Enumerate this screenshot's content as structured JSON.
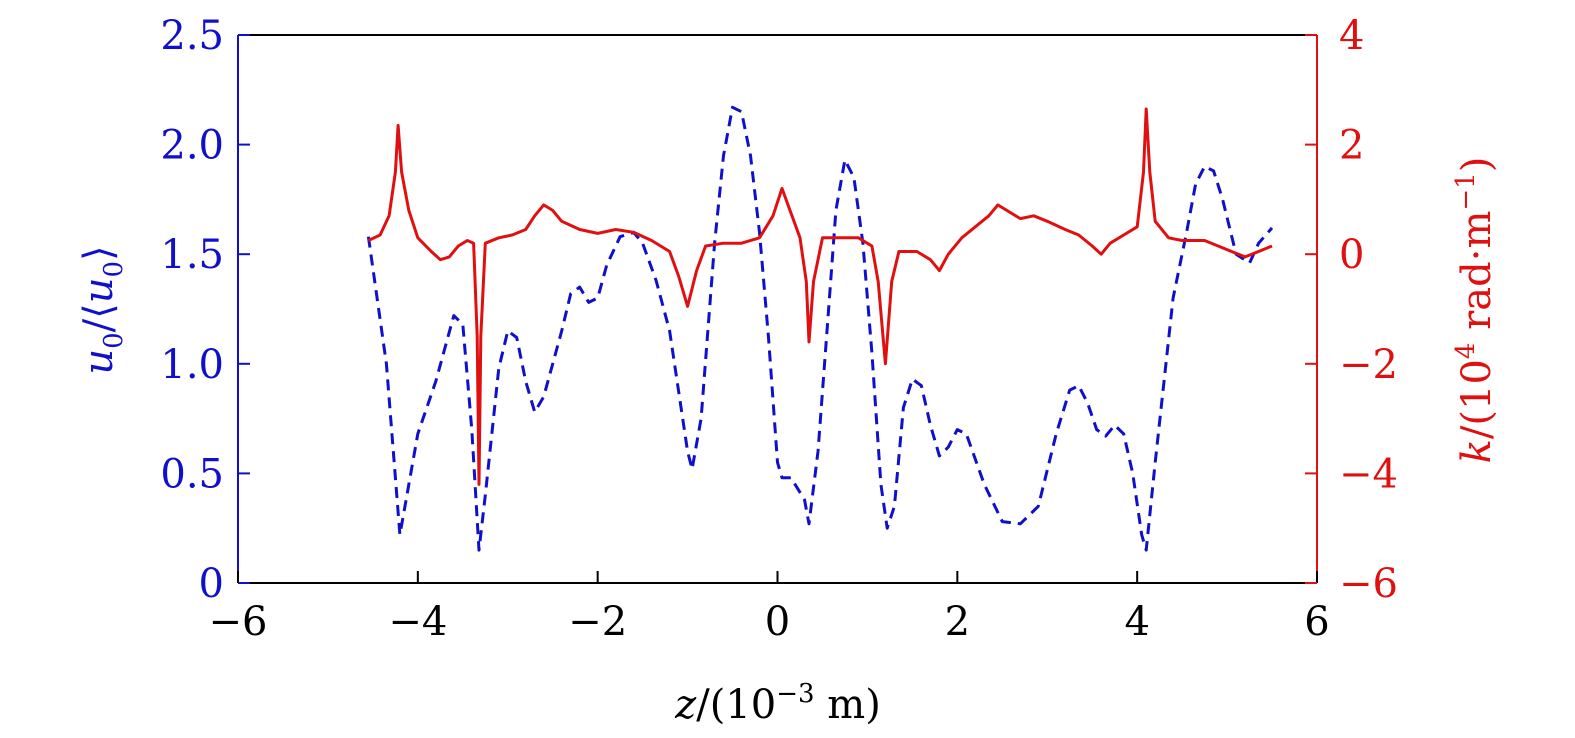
{
  "chart_data": {
    "type": "line",
    "x_range": [
      -6,
      6
    ],
    "x_ticks": [
      -6,
      -4,
      -2,
      0,
      2,
      4,
      6
    ],
    "x_tick_labels": [
      "−6",
      "−4",
      "−2",
      "0",
      "2",
      "4",
      "6"
    ],
    "x_label": {
      "var": "z",
      "text_a": "/(10",
      "sup": "−3",
      "text_b": " m)"
    },
    "left_axis": {
      "range": [
        0,
        2.5
      ],
      "ticks": [
        0,
        0.5,
        1.0,
        1.5,
        2.0,
        2.5
      ],
      "tick_labels": [
        "0",
        "0.5",
        "1.0",
        "1.5",
        "2.0",
        "2.5"
      ],
      "label": {
        "var": "u",
        "sub": "0",
        "mid": "/⟨",
        "var2": "u",
        "sub2": "0",
        "end": "⟩"
      },
      "color": "#1010cc"
    },
    "right_axis": {
      "range": [
        -6,
        4
      ],
      "ticks": [
        -6,
        -4,
        -2,
        0,
        2,
        4
      ],
      "tick_labels": [
        "−6",
        "−4",
        "−2",
        "0",
        "2",
        "4"
      ],
      "label": {
        "var": "k",
        "text_a": "/(10",
        "sup": "4",
        "text_b": " rad·m",
        "sup2": "−1",
        "text_c": ")"
      },
      "color": "#e01010"
    },
    "grid": false,
    "series": [
      {
        "axis": "left",
        "style": "dashed",
        "color": "#1010cc",
        "points": [
          [
            -4.55,
            1.58
          ],
          [
            -4.35,
            1.0
          ],
          [
            -4.2,
            0.22
          ],
          [
            -4.0,
            0.68
          ],
          [
            -3.8,
            0.92
          ],
          [
            -3.6,
            1.22
          ],
          [
            -3.5,
            1.18
          ],
          [
            -3.4,
            0.7
          ],
          [
            -3.32,
            0.15
          ],
          [
            -3.25,
            0.4
          ],
          [
            -3.1,
            0.98
          ],
          [
            -3.0,
            1.15
          ],
          [
            -2.9,
            1.12
          ],
          [
            -2.8,
            0.92
          ],
          [
            -2.7,
            0.78
          ],
          [
            -2.6,
            0.85
          ],
          [
            -2.4,
            1.15
          ],
          [
            -2.3,
            1.32
          ],
          [
            -2.2,
            1.35
          ],
          [
            -2.1,
            1.28
          ],
          [
            -2.0,
            1.3
          ],
          [
            -1.9,
            1.45
          ],
          [
            -1.75,
            1.58
          ],
          [
            -1.6,
            1.6
          ],
          [
            -1.5,
            1.55
          ],
          [
            -1.35,
            1.38
          ],
          [
            -1.2,
            1.15
          ],
          [
            -1.0,
            0.6
          ],
          [
            -0.95,
            0.52
          ],
          [
            -0.85,
            0.75
          ],
          [
            -0.7,
            1.55
          ],
          [
            -0.6,
            1.95
          ],
          [
            -0.5,
            2.17
          ],
          [
            -0.4,
            2.15
          ],
          [
            -0.3,
            1.95
          ],
          [
            -0.2,
            1.6
          ],
          [
            -0.1,
            1.12
          ],
          [
            0.0,
            0.55
          ],
          [
            0.05,
            0.48
          ],
          [
            0.15,
            0.48
          ],
          [
            0.3,
            0.38
          ],
          [
            0.35,
            0.27
          ],
          [
            0.45,
            0.6
          ],
          [
            0.55,
            1.15
          ],
          [
            0.65,
            1.7
          ],
          [
            0.75,
            1.93
          ],
          [
            0.85,
            1.85
          ],
          [
            0.95,
            1.55
          ],
          [
            1.05,
            1.05
          ],
          [
            1.15,
            0.45
          ],
          [
            1.22,
            0.25
          ],
          [
            1.3,
            0.35
          ],
          [
            1.4,
            0.8
          ],
          [
            1.5,
            0.93
          ],
          [
            1.6,
            0.9
          ],
          [
            1.7,
            0.72
          ],
          [
            1.8,
            0.58
          ],
          [
            1.9,
            0.62
          ],
          [
            2.0,
            0.7
          ],
          [
            2.1,
            0.68
          ],
          [
            2.3,
            0.45
          ],
          [
            2.5,
            0.28
          ],
          [
            2.7,
            0.27
          ],
          [
            2.9,
            0.35
          ],
          [
            3.1,
            0.68
          ],
          [
            3.25,
            0.88
          ],
          [
            3.35,
            0.9
          ],
          [
            3.45,
            0.82
          ],
          [
            3.55,
            0.7
          ],
          [
            3.65,
            0.67
          ],
          [
            3.75,
            0.72
          ],
          [
            3.85,
            0.68
          ],
          [
            3.95,
            0.5
          ],
          [
            4.05,
            0.22
          ],
          [
            4.1,
            0.15
          ],
          [
            4.2,
            0.55
          ],
          [
            4.4,
            1.3
          ],
          [
            4.55,
            1.6
          ],
          [
            4.65,
            1.82
          ],
          [
            4.75,
            1.9
          ],
          [
            4.85,
            1.88
          ],
          [
            4.95,
            1.75
          ],
          [
            5.1,
            1.5
          ],
          [
            5.25,
            1.46
          ],
          [
            5.35,
            1.55
          ],
          [
            5.5,
            1.62
          ]
        ]
      },
      {
        "axis": "right",
        "style": "solid",
        "color": "#e01010",
        "points": [
          [
            -4.55,
            0.25
          ],
          [
            -4.42,
            0.35
          ],
          [
            -4.32,
            0.7
          ],
          [
            -4.25,
            1.5
          ],
          [
            -4.22,
            2.35
          ],
          [
            -4.18,
            1.5
          ],
          [
            -4.1,
            0.8
          ],
          [
            -4.0,
            0.3
          ],
          [
            -3.85,
            0.05
          ],
          [
            -3.75,
            -0.1
          ],
          [
            -3.65,
            -0.05
          ],
          [
            -3.55,
            0.15
          ],
          [
            -3.45,
            0.25
          ],
          [
            -3.38,
            0.2
          ],
          [
            -3.34,
            -1.5
          ],
          [
            -3.32,
            -4.2
          ],
          [
            -3.3,
            -1.5
          ],
          [
            -3.25,
            0.2
          ],
          [
            -3.1,
            0.3
          ],
          [
            -2.95,
            0.35
          ],
          [
            -2.8,
            0.45
          ],
          [
            -2.7,
            0.7
          ],
          [
            -2.6,
            0.9
          ],
          [
            -2.5,
            0.8
          ],
          [
            -2.4,
            0.6
          ],
          [
            -2.2,
            0.45
          ],
          [
            -2.0,
            0.38
          ],
          [
            -1.8,
            0.45
          ],
          [
            -1.6,
            0.4
          ],
          [
            -1.4,
            0.25
          ],
          [
            -1.2,
            0.05
          ],
          [
            -1.1,
            -0.4
          ],
          [
            -1.0,
            -0.95
          ],
          [
            -0.9,
            -0.3
          ],
          [
            -0.8,
            0.15
          ],
          [
            -0.6,
            0.2
          ],
          [
            -0.4,
            0.2
          ],
          [
            -0.2,
            0.3
          ],
          [
            -0.05,
            0.7
          ],
          [
            0.05,
            1.2
          ],
          [
            0.15,
            0.75
          ],
          [
            0.25,
            0.3
          ],
          [
            0.32,
            -0.5
          ],
          [
            0.35,
            -1.6
          ],
          [
            0.4,
            -0.5
          ],
          [
            0.5,
            0.3
          ],
          [
            0.7,
            0.3
          ],
          [
            0.9,
            0.3
          ],
          [
            1.05,
            0.15
          ],
          [
            1.12,
            -0.5
          ],
          [
            1.2,
            -2.0
          ],
          [
            1.27,
            -0.5
          ],
          [
            1.35,
            0.05
          ],
          [
            1.55,
            0.05
          ],
          [
            1.7,
            -0.1
          ],
          [
            1.8,
            -0.3
          ],
          [
            1.9,
            0.0
          ],
          [
            2.05,
            0.3
          ],
          [
            2.2,
            0.5
          ],
          [
            2.35,
            0.7
          ],
          [
            2.45,
            0.9
          ],
          [
            2.55,
            0.8
          ],
          [
            2.7,
            0.65
          ],
          [
            2.85,
            0.7
          ],
          [
            3.0,
            0.6
          ],
          [
            3.2,
            0.45
          ],
          [
            3.35,
            0.35
          ],
          [
            3.5,
            0.15
          ],
          [
            3.6,
            0.0
          ],
          [
            3.7,
            0.2
          ],
          [
            3.85,
            0.35
          ],
          [
            4.0,
            0.5
          ],
          [
            4.07,
            1.5
          ],
          [
            4.1,
            2.65
          ],
          [
            4.14,
            1.5
          ],
          [
            4.2,
            0.6
          ],
          [
            4.35,
            0.3
          ],
          [
            4.5,
            0.25
          ],
          [
            4.75,
            0.25
          ],
          [
            4.9,
            0.15
          ],
          [
            5.05,
            0.05
          ],
          [
            5.2,
            -0.05
          ],
          [
            5.35,
            0.05
          ],
          [
            5.5,
            0.15
          ]
        ]
      }
    ]
  }
}
